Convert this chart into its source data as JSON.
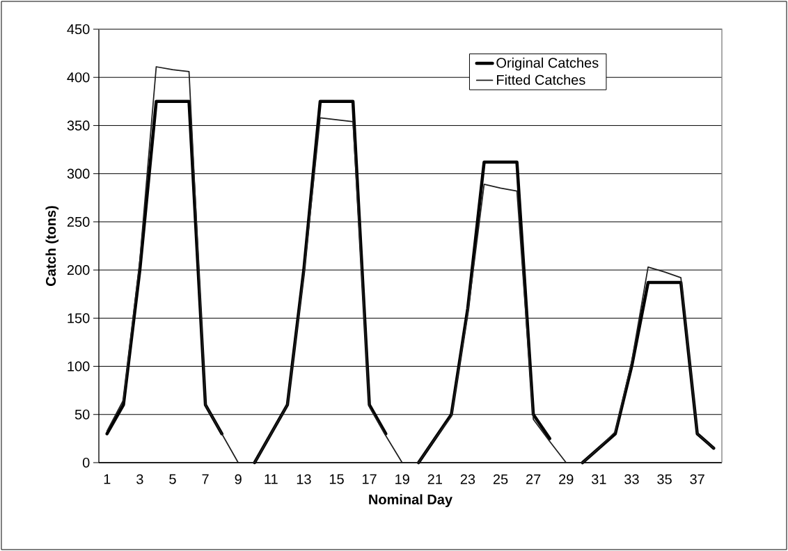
{
  "chart_data": {
    "type": "line",
    "xlabel": "Nominal Day",
    "ylabel": "Catch (tons)",
    "categories": [
      "1",
      null,
      "3",
      null,
      "5",
      null,
      "7",
      null,
      "9",
      null,
      "11",
      null,
      "13",
      null,
      "15",
      null,
      "17",
      null,
      "19",
      null,
      "21",
      null,
      "23",
      null,
      "25",
      null,
      "27",
      null,
      "29",
      null,
      "31",
      null,
      "33",
      null,
      "35",
      null,
      "37",
      null
    ],
    "series": [
      {
        "name": "Original Catches",
        "color": "#000000",
        "values": [
          30,
          60,
          200,
          375,
          375,
          375,
          60,
          30,
          null,
          0,
          30,
          60,
          200,
          375,
          375,
          375,
          60,
          30,
          null,
          0,
          25,
          50,
          160,
          312,
          312,
          312,
          50,
          25,
          null,
          0,
          15,
          30,
          100,
          187,
          187,
          187,
          30,
          15
        ]
      },
      {
        "name": "Fitted Catches",
        "color": "#1e1e1e",
        "values": [
          33,
          65,
          210,
          411,
          408,
          406,
          60,
          30,
          0,
          0,
          30,
          60,
          195,
          358,
          356,
          354,
          58,
          28,
          0,
          0,
          25,
          48,
          155,
          289,
          285,
          282,
          45,
          22,
          0,
          0,
          15,
          32,
          105,
          203,
          198,
          192,
          30,
          15
        ]
      }
    ],
    "ylim": [
      0,
      450
    ],
    "yticks": [
      0,
      50,
      100,
      150,
      200,
      250,
      300,
      350,
      400,
      450
    ],
    "grid": "y",
    "legend": "top right",
    "marker": "none",
    "line_style": "solid"
  }
}
